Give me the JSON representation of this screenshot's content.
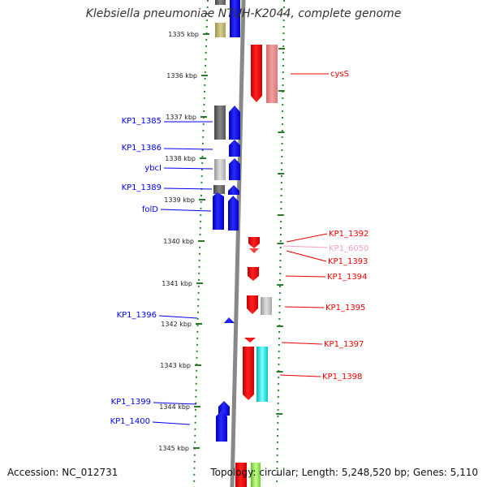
{
  "title": "Klebsiella pneumoniae NTUH-K2044, complete genome",
  "footer": {
    "accession": "Accession: NC_012731",
    "stats": "Topology: circular; Length: 5,248,520 bp; Genes: 5,110"
  },
  "colors": {
    "forward_gene": "#0000ee",
    "reverse_gene": "#ee0000",
    "pseudo_label": "#f0a0c8",
    "scale_tick": "#2a7a2a",
    "backbone": "#888888"
  },
  "scale": {
    "ticks": [
      "1335 kbp",
      "1336 kbp",
      "1337 kbp",
      "1338 kbp",
      "1339 kbp",
      "1340 kbp",
      "1341 kbp",
      "1342 kbp",
      "1343 kbp",
      "1344 kbp",
      "1345 kbp"
    ]
  },
  "left_labels": [
    {
      "text": "KP1_1385",
      "id": "kp1-1385"
    },
    {
      "text": "KP1_1386",
      "id": "kp1-1386"
    },
    {
      "text": "ybcI",
      "id": "ybci"
    },
    {
      "text": "KP1_1389",
      "id": "kp1-1389"
    },
    {
      "text": "folD",
      "id": "fold"
    },
    {
      "text": "KP1_1396",
      "id": "kp1-1396"
    },
    {
      "text": "KP1_1399",
      "id": "kp1-1399"
    },
    {
      "text": "KP1_1400",
      "id": "kp1-1400"
    }
  ],
  "right_labels": [
    {
      "text": "cysS",
      "id": "cyss"
    },
    {
      "text": "KP1_1392",
      "id": "kp1-1392"
    },
    {
      "text": "KP1_6050",
      "id": "kp1-6050"
    },
    {
      "text": "KP1_1393",
      "id": "kp1-1393"
    },
    {
      "text": "KP1_1394",
      "id": "kp1-1394"
    },
    {
      "text": "KP1_1395",
      "id": "kp1-1395"
    },
    {
      "text": "KP1_1397",
      "id": "kp1-1397"
    },
    {
      "text": "KP1_1398",
      "id": "kp1-1398"
    }
  ]
}
